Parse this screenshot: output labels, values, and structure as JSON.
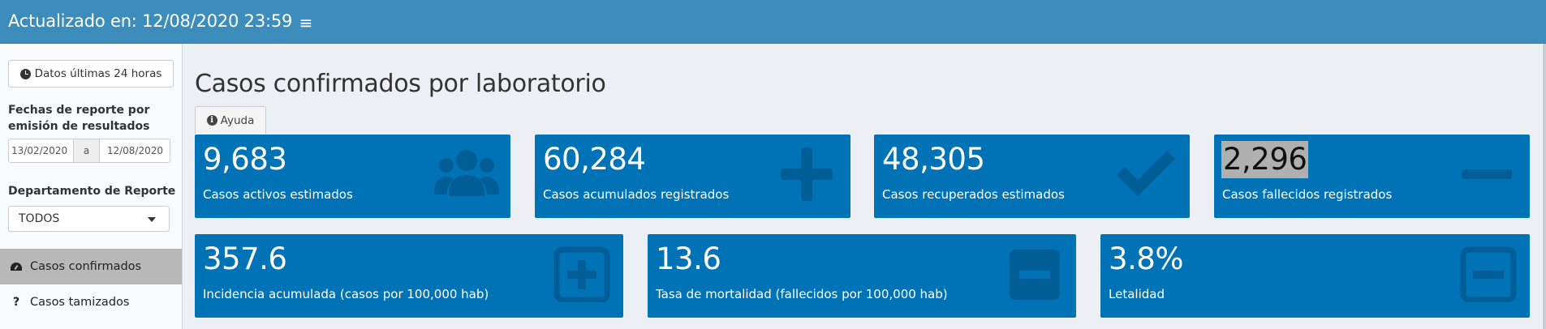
{
  "header": {
    "title": "Actualizado en: 12/08/2020 23:59",
    "menu_icon": "bars-icon"
  },
  "sidebar": {
    "btn_24h": "Datos últimas 24 horas",
    "fechas_label": "Fechas de reporte por emisión de resultados",
    "date_from": "13/02/2020",
    "date_sep": "a",
    "date_to": "12/08/2020",
    "depto_label": "Departamento de Reporte",
    "depto_value": "TODOS",
    "menu": [
      {
        "label": "Casos confirmados",
        "icon": "dashboard-icon",
        "active": true
      },
      {
        "label": "Casos tamizados",
        "icon": "question-icon",
        "active": false
      }
    ]
  },
  "main": {
    "title": "Casos confirmados por laboratorio",
    "help_label": "Ayuda",
    "boxes_row1": [
      {
        "value": "9,683",
        "label": "Casos activos estimados",
        "icon": "users-icon"
      },
      {
        "value": "60,284",
        "label": "Casos acumulados registrados",
        "icon": "plus-icon"
      },
      {
        "value": "48,305",
        "label": "Casos recuperados estimados",
        "icon": "check-icon"
      },
      {
        "value": "2,296",
        "label": "Casos fallecidos registrados",
        "icon": "minus-icon"
      }
    ],
    "boxes_row2": [
      {
        "value": "357.6",
        "label": "Incidencia acumulada (casos por 100,000 hab)",
        "icon": "plus-square-icon"
      },
      {
        "value": "13.6",
        "label": "Tasa de mortalidad (fallecidos por 100,000 hab)",
        "icon": "minus-square-icon"
      },
      {
        "value": "3.8%",
        "label": "Letalidad",
        "icon": "minus-square-outline-icon"
      }
    ]
  },
  "colors": {
    "header": "#3c8dbc",
    "box": "#0073b7",
    "sidebar_active": "#b8b8b8",
    "background": "#ecf0f5"
  }
}
